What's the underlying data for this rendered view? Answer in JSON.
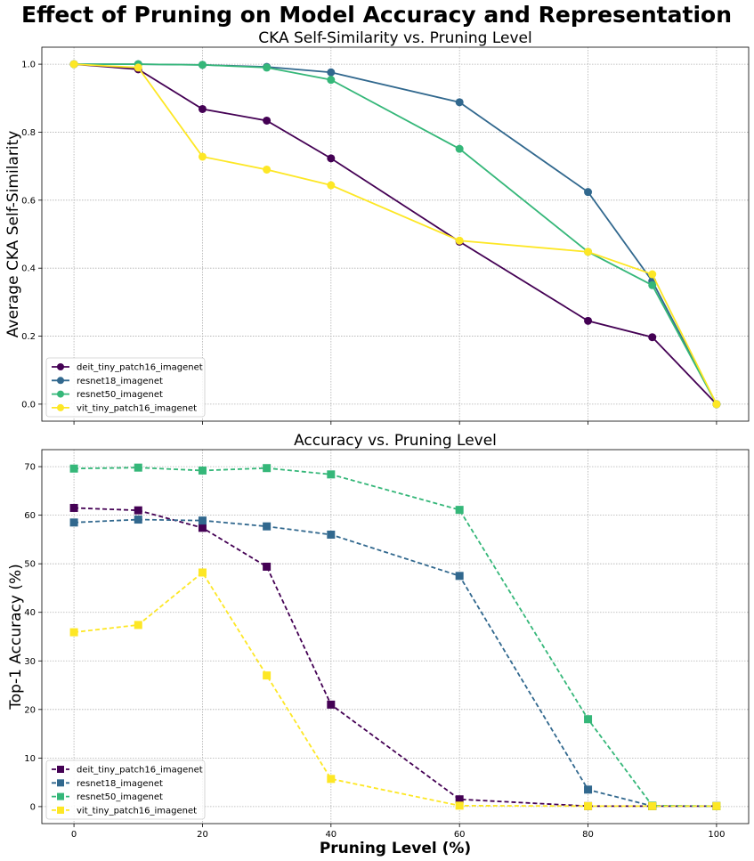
{
  "chart_data": {
    "suptitle": "Effect of Pruning on Model Accuracy and Representation",
    "xlabel": "Pruning Level (%)",
    "shared_x_ticks": [
      "0",
      "20",
      "40",
      "60",
      "80",
      "100"
    ],
    "charts": [
      {
        "type": "line",
        "title": "CKA Self-Similarity vs. Pruning Level",
        "xlabel": "",
        "ylabel": "Average CKA Self-Similarity",
        "xlim": [
          -5,
          105
        ],
        "ylim": [
          -0.05,
          1.05
        ],
        "y_ticks": [
          "0.0",
          "0.2",
          "0.4",
          "0.6",
          "0.8",
          "1.0"
        ],
        "x": [
          0,
          10,
          20,
          30,
          40,
          60,
          80,
          90,
          100
        ],
        "marker": "circle",
        "line_style": "solid",
        "grid": true,
        "legend_position": "lower-left",
        "series": [
          {
            "name": "deit_tiny_patch16_imagenet",
            "color": "#440154",
            "values": [
              1.0,
              0.985,
              0.868,
              0.834,
              0.723,
              0.478,
              0.245,
              0.197,
              0.0
            ]
          },
          {
            "name": "resnet18_imagenet",
            "color": "#31688e",
            "values": [
              1.0,
              1.0,
              0.998,
              0.992,
              0.976,
              0.888,
              0.624,
              0.362,
              0.0
            ]
          },
          {
            "name": "resnet50_imagenet",
            "color": "#35b779",
            "values": [
              1.0,
              1.0,
              0.998,
              0.99,
              0.954,
              0.751,
              0.448,
              0.35,
              0.0
            ]
          },
          {
            "name": "vit_tiny_patch16_imagenet",
            "color": "#fde725",
            "values": [
              1.0,
              0.99,
              0.728,
              0.69,
              0.644,
              0.481,
              0.448,
              0.382,
              0.0
            ]
          }
        ]
      },
      {
        "type": "line",
        "title": "Accuracy vs. Pruning Level",
        "xlabel": "Pruning Level (%)",
        "ylabel": "Top-1 Accuracy (%)",
        "xlim": [
          -5,
          105
        ],
        "ylim": [
          -3.5,
          73.5
        ],
        "y_ticks": [
          "0",
          "10",
          "20",
          "30",
          "40",
          "50",
          "60",
          "70"
        ],
        "x": [
          0,
          10,
          20,
          30,
          40,
          60,
          80,
          90,
          100
        ],
        "marker": "square",
        "line_style": "dashed",
        "grid": true,
        "legend_position": "lower-left",
        "series": [
          {
            "name": "deit_tiny_patch16_imagenet",
            "color": "#440154",
            "values": [
              61.5,
              61.0,
              57.4,
              49.4,
              21.0,
              1.5,
              0.1,
              0.1,
              0.1
            ]
          },
          {
            "name": "resnet18_imagenet",
            "color": "#31688e",
            "values": [
              58.5,
              59.1,
              58.9,
              57.7,
              56.0,
              47.5,
              3.5,
              0.1,
              0.1
            ]
          },
          {
            "name": "resnet50_imagenet",
            "color": "#35b779",
            "values": [
              69.6,
              69.8,
              69.2,
              69.7,
              68.4,
              61.1,
              18.0,
              0.2,
              0.1
            ]
          },
          {
            "name": "vit_tiny_patch16_imagenet",
            "color": "#fde725",
            "values": [
              35.9,
              37.4,
              48.2,
              27.0,
              5.7,
              0.2,
              0.1,
              0.1,
              0.1
            ]
          }
        ]
      }
    ]
  }
}
